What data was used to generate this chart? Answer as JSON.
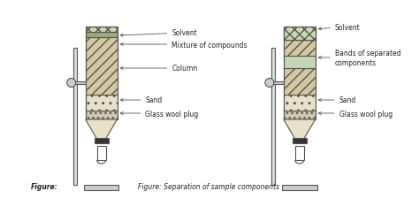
{
  "bg_color": "#f5f0e8",
  "col_color_hatch": "#d4c8a0",
  "sand_color": "#e8e0c8",
  "solvent_color": "#c8d8b0",
  "glass_wool_color": "#d0c8b0",
  "band1_color": "#b8c8d0",
  "band2_color": "#d0c0a0",
  "line_color": "#555555",
  "text_color": "#222222",
  "caption": "Figure: Separation of sample components",
  "left_labels": [
    "Solvent",
    "Mixture of compounds",
    "Column",
    "Sand",
    "Glass wool plug"
  ],
  "right_labels": [
    "Solvent",
    "Bands of separated\ncomponents",
    "Sand",
    "Glass wool plug"
  ]
}
